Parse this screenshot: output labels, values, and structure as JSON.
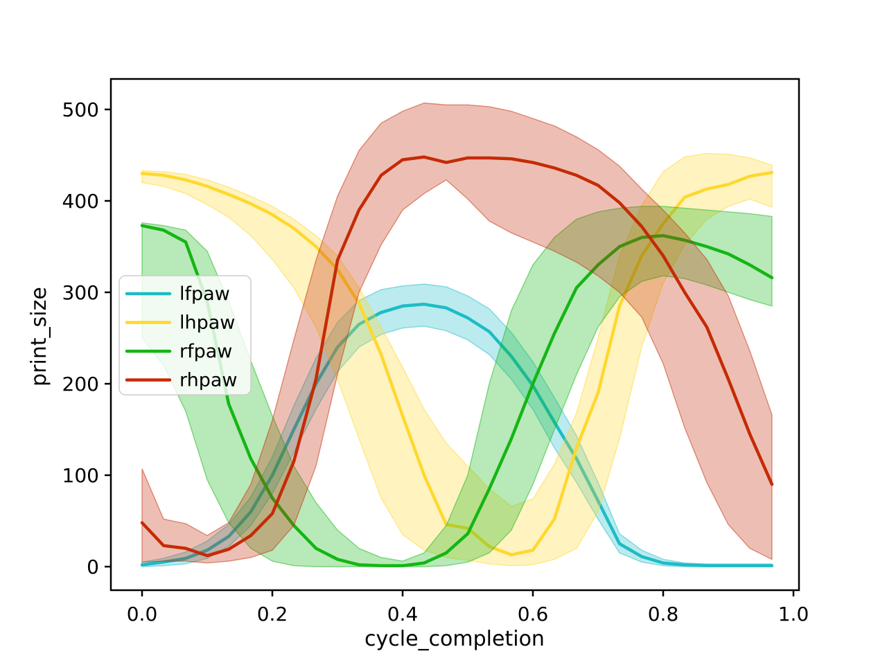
{
  "figure": {
    "background": "#ffffff"
  },
  "chart_data": {
    "type": "line",
    "title": "",
    "xlabel": "cycle_completion",
    "ylabel": "print_size",
    "grid": false,
    "xlim": [
      -0.048,
      1.009
    ],
    "ylim": [
      -25.8,
      533.3
    ],
    "x_ticks": {
      "values": [
        0.0,
        0.2,
        0.4,
        0.6,
        0.8,
        1.0
      ],
      "labels": [
        "0.0",
        "0.2",
        "0.4",
        "0.6",
        "0.8",
        "1.0"
      ]
    },
    "y_ticks": {
      "values": [
        0,
        100,
        200,
        300,
        400,
        500
      ],
      "labels": [
        "0",
        "100",
        "200",
        "300",
        "400",
        "500"
      ]
    },
    "legend": {
      "position": "center-left",
      "entries": [
        "lfpaw",
        "lhpaw",
        "rfpaw",
        "rhpaw"
      ]
    },
    "x": [
      0.0,
      0.033,
      0.067,
      0.1,
      0.133,
      0.167,
      0.2,
      0.233,
      0.267,
      0.3,
      0.333,
      0.367,
      0.4,
      0.433,
      0.467,
      0.5,
      0.533,
      0.567,
      0.6,
      0.633,
      0.667,
      0.7,
      0.733,
      0.767,
      0.8,
      0.833,
      0.867,
      0.9,
      0.933,
      0.967
    ],
    "series": [
      {
        "name": "lfpaw",
        "color": "#1dbcc6",
        "mean": [
          2,
          5,
          9,
          18,
          33,
          60,
          100,
          150,
          200,
          240,
          265,
          278,
          285,
          287,
          283,
          272,
          257,
          230,
          198,
          158,
          118,
          72,
          25,
          11,
          4,
          2,
          1,
          1,
          1,
          1
        ],
        "ci_low": [
          0,
          1,
          3,
          9,
          22,
          45,
          80,
          125,
          172,
          213,
          240,
          254,
          261,
          263,
          258,
          248,
          232,
          205,
          172,
          130,
          92,
          52,
          15,
          5,
          1,
          0,
          0,
          0,
          0,
          0
        ],
        "ci_high": [
          5,
          9,
          16,
          28,
          46,
          76,
          120,
          176,
          228,
          267,
          291,
          303,
          307,
          309,
          306,
          296,
          282,
          256,
          224,
          185,
          143,
          92,
          36,
          18,
          8,
          4,
          3,
          3,
          3,
          3
        ]
      },
      {
        "name": "lhpaw",
        "color": "#ffd82e",
        "mean": [
          430,
          428,
          423,
          416,
          407,
          397,
          385,
          370,
          350,
          325,
          288,
          232,
          165,
          100,
          46,
          42,
          22,
          13,
          18,
          52,
          130,
          190,
          285,
          340,
          375,
          404,
          413,
          418,
          427,
          431
        ],
        "ci_low": [
          420,
          416,
          408,
          396,
          382,
          362,
          336,
          305,
          262,
          205,
          140,
          75,
          35,
          18,
          10,
          7,
          3,
          1,
          2,
          8,
          20,
          60,
          140,
          240,
          310,
          352,
          380,
          394,
          402,
          393
        ],
        "ci_high": [
          433,
          432,
          429,
          423,
          415,
          405,
          394,
          380,
          362,
          340,
          305,
          262,
          218,
          172,
          135,
          110,
          85,
          66,
          74,
          112,
          168,
          250,
          340,
          395,
          432,
          448,
          452,
          451,
          447,
          439
        ]
      },
      {
        "name": "rfpaw",
        "color": "#15b515",
        "mean": [
          373,
          368,
          355,
          290,
          178,
          118,
          75,
          45,
          20,
          8,
          2,
          1,
          1,
          4,
          15,
          36,
          85,
          140,
          200,
          255,
          305,
          330,
          350,
          360,
          362,
          357,
          350,
          342,
          330,
          316
        ],
        "ci_low": [
          250,
          220,
          170,
          95,
          48,
          20,
          6,
          1,
          0,
          0,
          0,
          0,
          0,
          0,
          1,
          5,
          15,
          40,
          90,
          150,
          210,
          262,
          295,
          312,
          318,
          315,
          308,
          300,
          292,
          285
        ],
        "ci_high": [
          376,
          373,
          368,
          345,
          290,
          225,
          165,
          110,
          70,
          40,
          20,
          10,
          6,
          15,
          45,
          100,
          200,
          280,
          330,
          360,
          380,
          388,
          392,
          394,
          394,
          392,
          390,
          388,
          386,
          383
        ]
      },
      {
        "name": "rhpaw",
        "color": "#c52b05",
        "mean": [
          48,
          23,
          20,
          12,
          19,
          34,
          58,
          115,
          205,
          335,
          390,
          428,
          445,
          448,
          442,
          447,
          447,
          446,
          442,
          436,
          428,
          417,
          398,
          372,
          340,
          300,
          262,
          205,
          145,
          90
        ],
        "ci_low": [
          5,
          6,
          6,
          4,
          6,
          10,
          18,
          45,
          110,
          210,
          300,
          352,
          390,
          408,
          423,
          402,
          378,
          365,
          355,
          345,
          333,
          318,
          300,
          273,
          222,
          152,
          92,
          46,
          20,
          8
        ],
        "ci_high": [
          107,
          52,
          47,
          34,
          48,
          90,
          160,
          248,
          335,
          405,
          455,
          485,
          498,
          507,
          505,
          505,
          503,
          498,
          490,
          482,
          470,
          456,
          438,
          413,
          390,
          365,
          336,
          296,
          236,
          166
        ]
      }
    ]
  }
}
